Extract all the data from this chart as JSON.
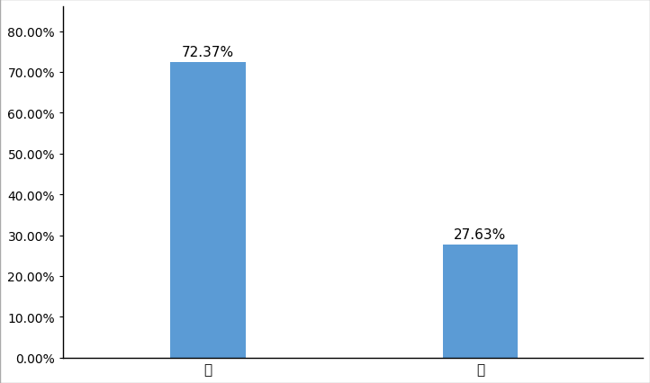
{
  "categories": [
    "是",
    "否"
  ],
  "values": [
    0.7237,
    0.2763
  ],
  "labels": [
    "72.37%",
    "27.63%"
  ],
  "bar_color": "#5B9BD5",
  "background_color": "#ffffff",
  "yticks": [
    0.0,
    0.1,
    0.2,
    0.3,
    0.4,
    0.5,
    0.6,
    0.7,
    0.8
  ],
  "ytick_labels": [
    "0.00%",
    "10.00%",
    "20.00%",
    "30.00%",
    "40.00%",
    "50.00%",
    "60.00%",
    "70.00%",
    "80.00%"
  ],
  "ylim": [
    0,
    0.86
  ],
  "bar_width": 0.13,
  "x_positions": [
    0.25,
    0.72
  ],
  "xlim": [
    0.0,
    1.0
  ],
  "label_fontsize": 11,
  "tick_fontsize": 10,
  "category_fontsize": 11,
  "spine_color": "#000000",
  "border_color": "#aaaaaa"
}
